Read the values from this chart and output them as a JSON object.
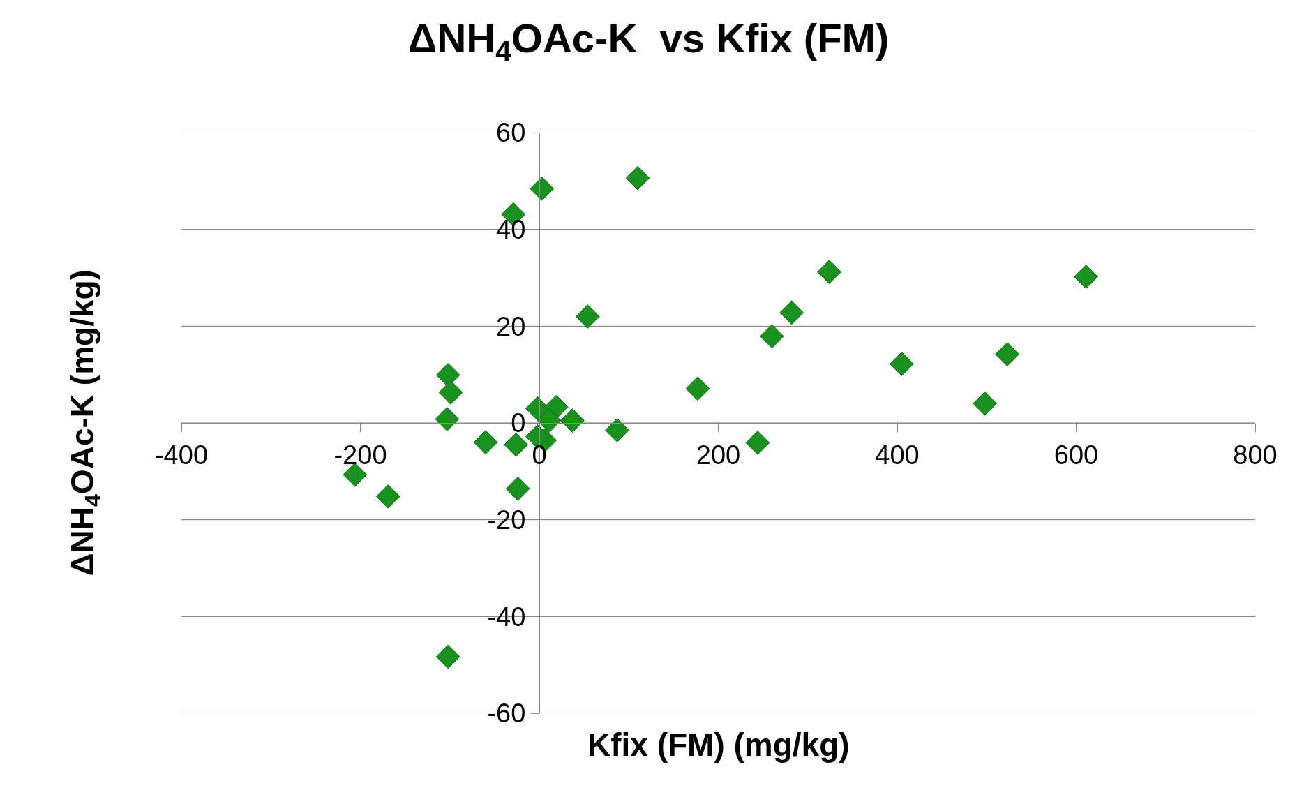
{
  "chart_data": {
    "type": "scatter",
    "title": "ΔNH$_{4}$OAc-K  vs Kfix (FM)",
    "xlabel": "Kfix (FM) (mg/kg)",
    "ylabel": "ΔNH$_{4}$OAc-K (mg/kg)",
    "series": [
      {
        "color": "#1a9020",
        "x": [
          -206,
          -169,
          -102,
          -99,
          -103,
          -60,
          -26,
          -24,
          -102,
          -29,
          3,
          110,
          54,
          -2,
          19,
          11,
          6,
          -2,
          37,
          87,
          177,
          244,
          260,
          282,
          324,
          405,
          498,
          523,
          611
        ],
        "values": [
          -10.7,
          -15.2,
          9.9,
          6.3,
          0.8,
          -4.0,
          -4.5,
          -13.6,
          -48.3,
          43.1,
          48.4,
          50.6,
          22.0,
          3.0,
          3.3,
          0.5,
          -3.6,
          -2.8,
          0.5,
          -1.5,
          7.1,
          -4.1,
          17.9,
          22.8,
          31.2,
          12.2,
          4.0,
          14.2,
          30.2
        ]
      }
    ],
    "xlim": [
      -400,
      800
    ],
    "xticks": [
      -400,
      -200,
      0,
      200,
      400,
      600,
      800
    ],
    "ylim": [
      -60,
      60
    ],
    "yticks": [
      -60,
      -40,
      -20,
      0,
      20,
      40,
      60
    ],
    "grid": "y",
    "marker": "diamond"
  }
}
